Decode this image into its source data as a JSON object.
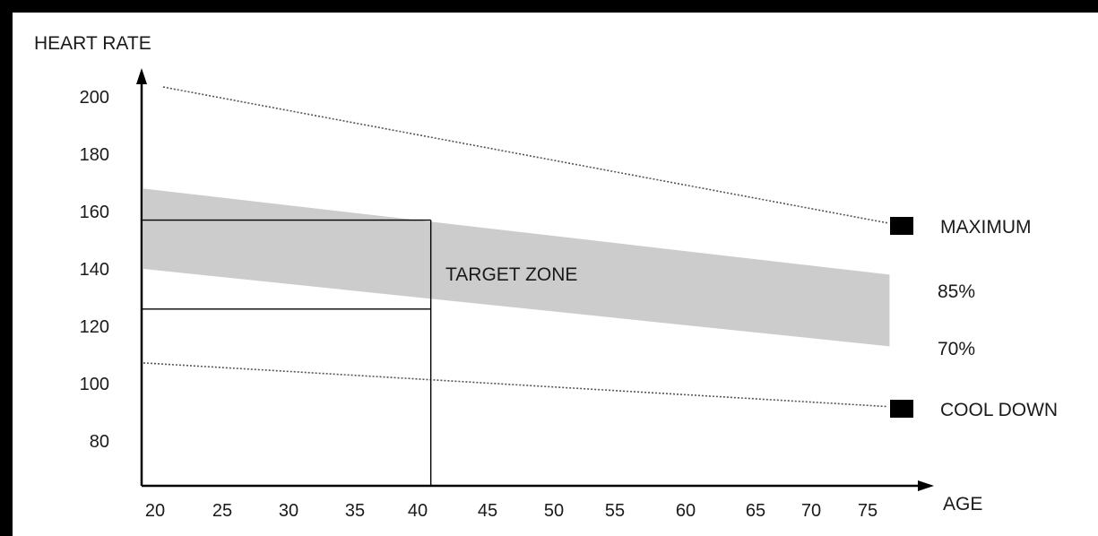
{
  "chart_data": {
    "type": "area",
    "title": "",
    "xlabel": "AGE",
    "ylabel": "HEART RATE",
    "x_ticks": [
      20,
      25,
      30,
      35,
      40,
      45,
      50,
      55,
      60,
      65,
      70,
      75
    ],
    "y_ticks": [
      80,
      100,
      120,
      140,
      160,
      180,
      200
    ],
    "xlim": [
      20,
      75
    ],
    "ylim": [
      70,
      210
    ],
    "series": [
      {
        "name": "MAXIMUM",
        "x": [
          20,
          76
        ],
        "y": [
          204,
          156
        ],
        "style": "dotted"
      },
      {
        "name": "85%",
        "x": [
          20,
          76
        ],
        "y": [
          168,
          138
        ],
        "style": "band-top"
      },
      {
        "name": "70%",
        "x": [
          20,
          76
        ],
        "y": [
          140,
          113
        ],
        "style": "band-bottom"
      },
      {
        "name": "COOL DOWN",
        "x": [
          20,
          76
        ],
        "y": [
          107,
          92
        ],
        "style": "dotted"
      }
    ],
    "band_label": "TARGET ZONE",
    "reference": {
      "age": 41,
      "upper_rate": 157,
      "lower_rate": 126
    },
    "legend": [
      {
        "label": "MAXIMUM",
        "marker": "square"
      },
      {
        "label": "85%",
        "marker": "none"
      },
      {
        "label": "70%",
        "marker": "none"
      },
      {
        "label": "COOL DOWN",
        "marker": "square"
      }
    ],
    "legend_position": "right",
    "grid": false,
    "colors": {
      "band": "#cccccc",
      "lines": "#000000",
      "dotted": "#555555"
    }
  }
}
